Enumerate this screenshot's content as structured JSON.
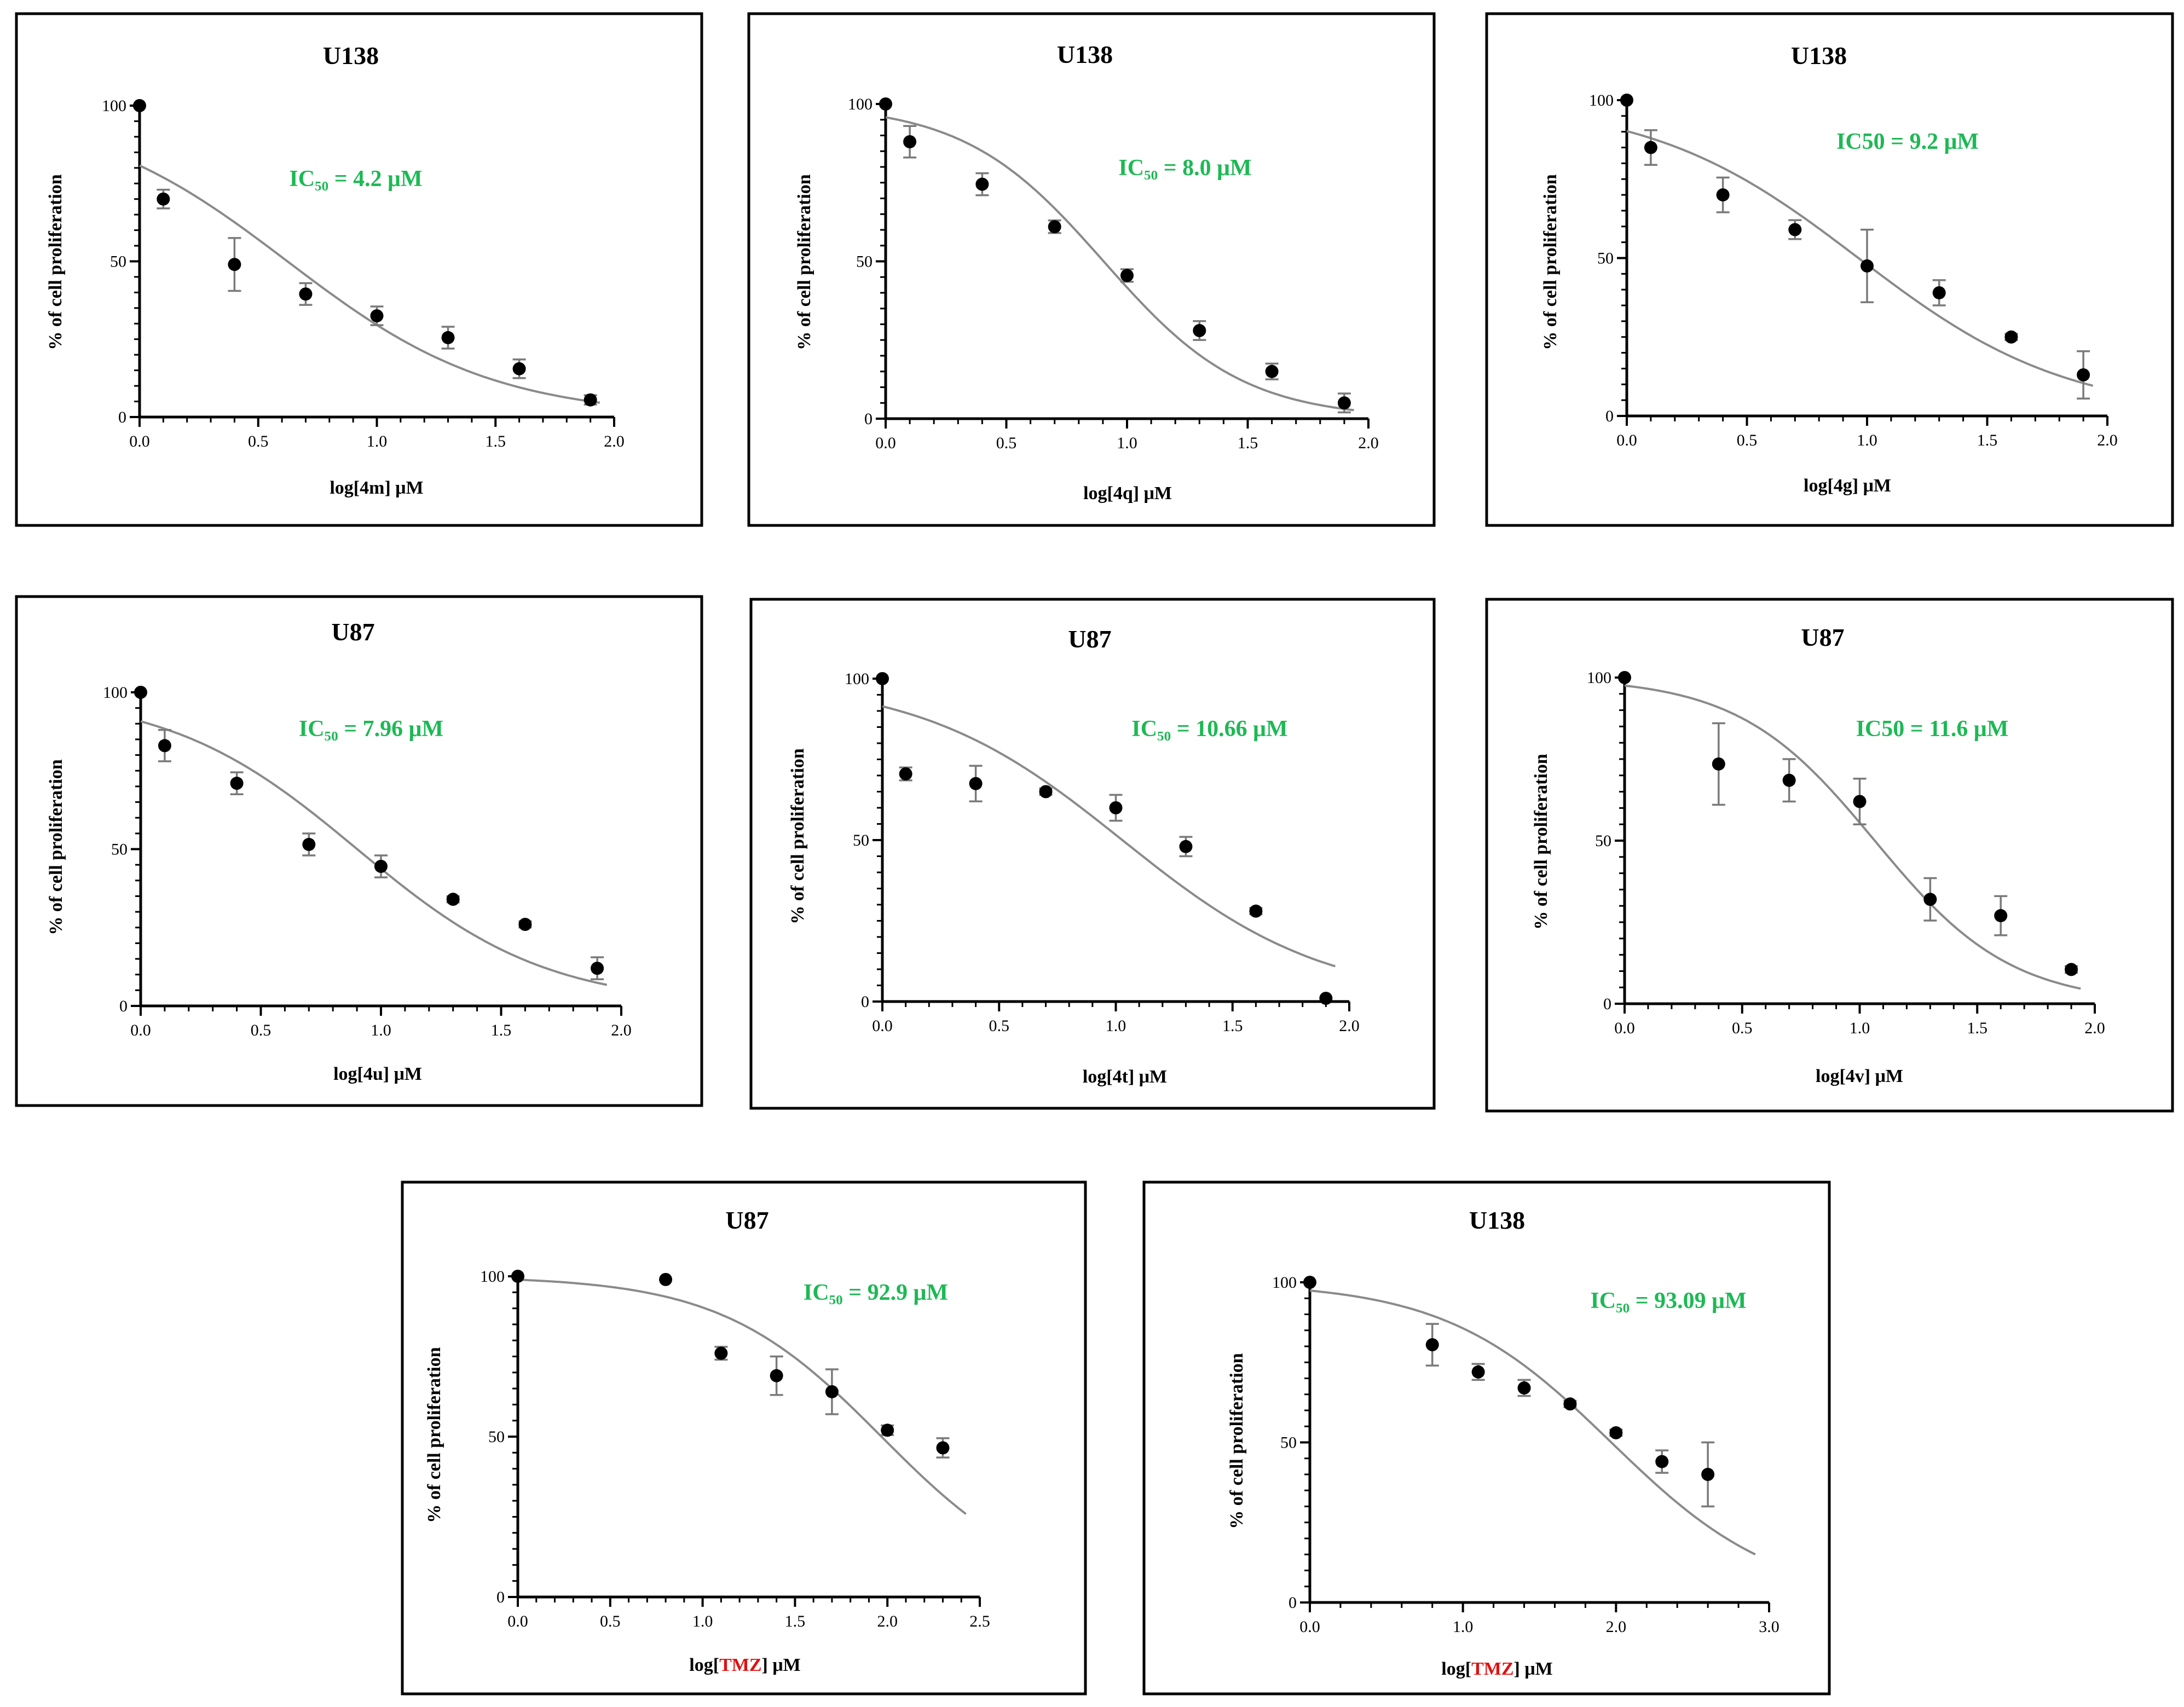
{
  "chart_data": [
    {
      "type": "scatter",
      "title": "U138",
      "annotation": "IC₅₀ = 4.2 μM",
      "xlabel": [
        "log[4m] μM"
      ],
      "ylabel": "% of cell proliferation",
      "xlim": [
        0,
        2.0
      ],
      "ylim": [
        0,
        100
      ],
      "xticks": [
        0.0,
        0.5,
        1.0,
        1.5,
        2.0
      ],
      "xtick_labels": [
        "0.0",
        "0.5",
        "1.0",
        "1.5",
        "2.0"
      ],
      "yticks": [
        0,
        50,
        100
      ],
      "ytick_labels": [
        "0",
        "50",
        "100"
      ],
      "x": [
        0.0,
        0.1,
        0.4,
        0.7,
        1.0,
        1.3,
        1.6,
        1.9
      ],
      "y": [
        100,
        70,
        49,
        39.5,
        32.5,
        25.5,
        15.5,
        5.5
      ],
      "err": [
        0,
        3,
        8.5,
        3.5,
        3,
        3.5,
        3,
        1.5
      ],
      "fit": {
        "top": 100,
        "bottom": 0,
        "logIC50": 0.623,
        "hill": -1.0
      }
    },
    {
      "type": "scatter",
      "title": "U138",
      "annotation": "IC₅₀ = 8.0 μM",
      "xlabel": [
        "log[4q] μM"
      ],
      "ylabel": "% of cell proliferation",
      "xlim": [
        0,
        2.0
      ],
      "ylim": [
        0,
        100
      ],
      "xticks": [
        0.0,
        0.5,
        1.0,
        1.5,
        2.0
      ],
      "xtick_labels": [
        "0.0",
        "0.5",
        "1.0",
        "1.5",
        "2.0"
      ],
      "yticks": [
        0,
        50,
        100
      ],
      "ytick_labels": [
        "0",
        "50",
        "100"
      ],
      "x": [
        0.0,
        0.1,
        0.4,
        0.7,
        1.0,
        1.3,
        1.6,
        1.9
      ],
      "y": [
        100,
        88,
        74.5,
        61,
        45.5,
        28,
        15,
        5
      ],
      "err": [
        0,
        5,
        3.5,
        2,
        2,
        3,
        2.5,
        3
      ],
      "fit": {
        "top": 100,
        "bottom": 0,
        "logIC50": 0.903,
        "hill": -1.5
      }
    },
    {
      "type": "scatter",
      "title": "U138",
      "annotation": "IC50 = 9.2 μM",
      "xlabel": [
        "log[4g] μM"
      ],
      "ylabel": "% of cell proliferation",
      "xlim": [
        0,
        2.0
      ],
      "ylim": [
        0,
        100
      ],
      "xticks": [
        0.0,
        0.5,
        1.0,
        1.5,
        2.0
      ],
      "xtick_labels": [
        "0.0",
        "0.5",
        "1.0",
        "1.5",
        "2.0"
      ],
      "yticks": [
        0,
        50,
        100
      ],
      "ytick_labels": [
        "0",
        "50",
        "100"
      ],
      "x": [
        0.0,
        0.1,
        0.4,
        0.7,
        1.0,
        1.3,
        1.6,
        1.9
      ],
      "y": [
        100,
        85,
        70,
        59,
        47.5,
        39,
        25,
        13
      ],
      "err": [
        0,
        5.5,
        5.5,
        3,
        11.5,
        4,
        1,
        7.5
      ],
      "fit": {
        "top": 100,
        "bottom": 0,
        "logIC50": 0.964,
        "hill": -1.0
      }
    },
    {
      "type": "scatter",
      "title": "U87",
      "annotation": "IC₅₀ = 7.96 μM",
      "xlabel": [
        "log[4u] μM"
      ],
      "ylabel": "% of cell proliferation",
      "xlim": [
        0,
        2.0
      ],
      "ylim": [
        0,
        100
      ],
      "xticks": [
        0.0,
        0.5,
        1.0,
        1.5,
        2.0
      ],
      "xtick_labels": [
        "0.0",
        "0.5",
        "1.0",
        "1.5",
        "2.0"
      ],
      "yticks": [
        0,
        50,
        100
      ],
      "ytick_labels": [
        "0",
        "50",
        "100"
      ],
      "x": [
        0.0,
        0.1,
        0.4,
        0.7,
        1.0,
        1.3,
        1.6,
        1.9
      ],
      "y": [
        100,
        83,
        71,
        51.5,
        44.5,
        34,
        26,
        12
      ],
      "err": [
        0,
        5,
        3.5,
        3.5,
        3.5,
        1,
        1,
        3.5
      ],
      "fit": {
        "top": 100,
        "bottom": 0,
        "logIC50": 0.901,
        "hill": -1.1
      }
    },
    {
      "type": "scatter",
      "title": "U87",
      "annotation": "IC₅₀ = 10.66 μM",
      "xlabel": [
        "log[4t] μM"
      ],
      "ylabel": "% of cell proliferation",
      "xlim": [
        0,
        2.0
      ],
      "ylim": [
        0,
        100
      ],
      "xticks": [
        0.0,
        0.5,
        1.0,
        1.5,
        2.0
      ],
      "xtick_labels": [
        "0.0",
        "0.5",
        "1.0",
        "1.5",
        "2.0"
      ],
      "yticks": [
        0,
        50,
        100
      ],
      "ytick_labels": [
        "0",
        "50",
        "100"
      ],
      "x": [
        0.0,
        0.1,
        0.4,
        0.7,
        1.0,
        1.3,
        1.6,
        1.9
      ],
      "y": [
        100,
        70.5,
        67.5,
        65,
        60,
        48,
        28,
        1
      ],
      "err": [
        0,
        2,
        5.5,
        1,
        4,
        3,
        1,
        0.5
      ],
      "fit": {
        "top": 100,
        "bottom": 0,
        "logIC50": 1.028,
        "hill": -1.0
      }
    },
    {
      "type": "scatter",
      "title": "U87",
      "annotation": "IC50 = 11.6 μM",
      "xlabel": [
        "log[4v] μM"
      ],
      "ylabel": "% of cell proliferation",
      "xlim": [
        0,
        2.0
      ],
      "ylim": [
        0,
        100
      ],
      "xticks": [
        0.0,
        0.5,
        1.0,
        1.5,
        2.0
      ],
      "xtick_labels": [
        "0.0",
        "0.5",
        "1.0",
        "1.5",
        "2.0"
      ],
      "yticks": [
        0,
        50,
        100
      ],
      "ytick_labels": [
        "0",
        "50",
        "100"
      ],
      "x": [
        0.0,
        0.4,
        0.7,
        1.0,
        1.3,
        1.6,
        1.9
      ],
      "y": [
        100,
        73.5,
        68.5,
        62,
        32,
        27,
        10.5
      ],
      "err": [
        0,
        12.5,
        6.5,
        7,
        6.5,
        6,
        1
      ],
      "fit": {
        "top": 100,
        "bottom": 0,
        "logIC50": 1.064,
        "hill": -1.5
      }
    },
    {
      "type": "scatter",
      "title": "U87",
      "annotation": "IC₅₀ = 92.9 μM",
      "xlabel": [
        "log[",
        "TMZ",
        "] μM"
      ],
      "ylabel": "% of cell proliferation",
      "xlim": [
        0,
        2.5
      ],
      "ylim": [
        0,
        100
      ],
      "xticks": [
        0.0,
        0.5,
        1.0,
        1.5,
        2.0,
        2.5
      ],
      "xtick_labels": [
        "0.0",
        "0.5",
        "1.0",
        "1.5",
        "2.0",
        "2.5"
      ],
      "yticks": [
        0,
        50,
        100
      ],
      "ytick_labels": [
        "0",
        "50",
        "100"
      ],
      "x": [
        0.0,
        0.8,
        1.1,
        1.4,
        1.7,
        2.0,
        2.3
      ],
      "y": [
        100,
        99,
        76,
        69,
        64,
        52,
        46.5
      ],
      "err": [
        0,
        0.5,
        2,
        6,
        7,
        1.5,
        3
      ],
      "fit": {
        "top": 100,
        "bottom": 0,
        "logIC50": 1.968,
        "hill": -1.0
      }
    },
    {
      "type": "scatter",
      "title": "U138",
      "annotation": "IC₅₀ = 93.09 μM",
      "xlabel": [
        "log[",
        "TMZ",
        "] μM"
      ],
      "ylabel": "% of cell proliferation",
      "xlim": [
        0,
        3.0
      ],
      "ylim": [
        0,
        100
      ],
      "xticks": [
        0.0,
        1.0,
        2.0,
        3.0
      ],
      "xtick_labels": [
        "0.0",
        "1.0",
        "2.0",
        "3.0"
      ],
      "yticks": [
        0,
        50,
        100
      ],
      "ytick_labels": [
        "0",
        "50",
        "100"
      ],
      "x": [
        0.0,
        0.8,
        1.1,
        1.4,
        1.7,
        2.0,
        2.3,
        2.6
      ],
      "y": [
        100,
        80.5,
        72,
        67,
        62,
        53,
        44,
        40
      ],
      "err": [
        0,
        6.5,
        2.5,
        2.5,
        1,
        1,
        3.5,
        10
      ],
      "fit": {
        "top": 100,
        "bottom": 0,
        "logIC50": 1.969,
        "hill": -0.8
      }
    }
  ]
}
